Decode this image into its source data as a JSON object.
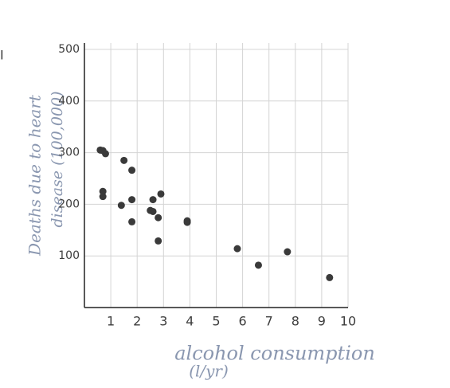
{
  "chart_data": {
    "type": "scatter",
    "margin_mark": "I",
    "xlabel": "alcohol consumption",
    "xlabel_unit": "(l/yr)",
    "ylabel": "Deaths due to heart",
    "ylabel_line2": "disease (100,000)",
    "x": [
      0.6,
      0.7,
      0.8,
      0.7,
      0.7,
      1.4,
      1.5,
      1.8,
      1.8,
      1.8,
      2.6,
      2.5,
      2.6,
      2.9,
      2.8,
      2.8,
      3.9,
      3.9,
      5.8,
      6.6,
      7.7,
      9.3
    ],
    "values": [
      305,
      304,
      298,
      225,
      215,
      198,
      285,
      266,
      209,
      166,
      209,
      188,
      186,
      220,
      174,
      129,
      168,
      165,
      114,
      82,
      108,
      58
    ],
    "color": "#3a3a3a",
    "xlim": [
      0,
      10
    ],
    "ylim": [
      0,
      500
    ],
    "xticks": [
      1,
      2,
      3,
      4,
      5,
      6,
      7,
      8,
      9,
      10
    ],
    "yticks": [
      100,
      200,
      300,
      400,
      500
    ],
    "grid": true
  }
}
